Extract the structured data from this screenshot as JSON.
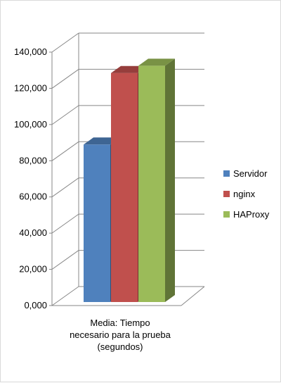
{
  "chart_data": {
    "type": "bar",
    "categories": [
      "Media: Tiempo necesario para la prueba (segundos)"
    ],
    "category_lines": [
      "Media: Tiempo",
      "necesario para la prueba",
      "(segundos)"
    ],
    "series": [
      {
        "name": "Servidor",
        "values": [
          87000
        ],
        "color": "#4F81BD"
      },
      {
        "name": "nginx",
        "values": [
          126500
        ],
        "color": "#C0504D"
      },
      {
        "name": "HAProxy",
        "values": [
          130500
        ],
        "color": "#9BBB59"
      }
    ],
    "ylim": [
      0,
      140000
    ],
    "yticks": [
      "0,000",
      "20,000",
      "40,000",
      "60,000",
      "80,000",
      "100,000",
      "120,000",
      "140,000"
    ],
    "grid": true,
    "legend_position": "right",
    "style": "3d-clustered-column"
  }
}
